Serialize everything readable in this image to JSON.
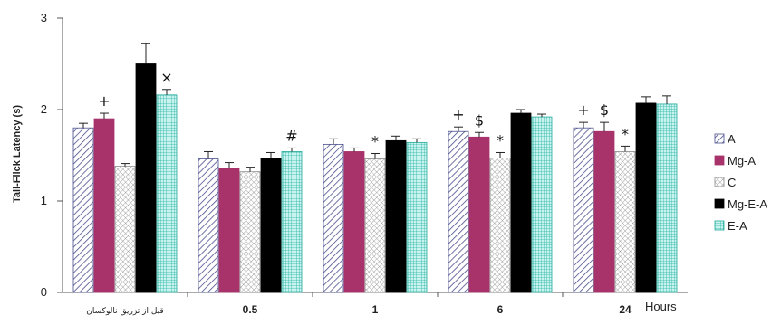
{
  "chart_data": {
    "type": "bar",
    "categories": [
      "قبل از تزریق نالوکسان",
      "0.5",
      "1",
      "6",
      "24"
    ],
    "xlabel": "Hours",
    "ylabel": "Tail-Flick Latency (s)",
    "ylim": [
      0,
      3
    ],
    "yticks": [
      "0",
      "1",
      "2",
      "3"
    ],
    "legend_position": "right",
    "series": [
      {
        "name": "A",
        "values": [
          1.8,
          1.46,
          1.62,
          1.76,
          1.8
        ],
        "errors": [
          0.05,
          0.08,
          0.06,
          0.05,
          0.06
        ],
        "color": "#4a4f8c",
        "pattern": "diag"
      },
      {
        "name": "Mg-A",
        "values": [
          1.9,
          1.36,
          1.54,
          1.7,
          1.76
        ],
        "errors": [
          0.06,
          0.06,
          0.04,
          0.05,
          0.1
        ],
        "color": "#a8336b",
        "pattern": "solid"
      },
      {
        "name": "C",
        "values": [
          1.38,
          1.32,
          1.46,
          1.47,
          1.54
        ],
        "errors": [
          0.03,
          0.05,
          0.06,
          0.06,
          0.06
        ],
        "color": "#888888",
        "pattern": "grid"
      },
      {
        "name": "Mg-E-A",
        "values": [
          2.5,
          1.47,
          1.66,
          1.96,
          2.07
        ],
        "errors": [
          0.22,
          0.06,
          0.05,
          0.04,
          0.07
        ],
        "color": "#000000",
        "pattern": "solid"
      },
      {
        "name": "E-A",
        "values": [
          2.16,
          1.54,
          1.64,
          1.92,
          2.06
        ],
        "errors": [
          0.06,
          0.04,
          0.04,
          0.03,
          0.09
        ],
        "color": "#33c2b3",
        "pattern": "grid"
      }
    ],
    "annotations": [
      {
        "text": "+",
        "category": 0,
        "series": 1
      },
      {
        "text": "×",
        "category": 0,
        "series": 4
      },
      {
        "text": "#",
        "category": 1,
        "series": 4
      },
      {
        "text": "*",
        "category": 2,
        "series": 2
      },
      {
        "text": "+",
        "category": 3,
        "series": 0
      },
      {
        "text": "$",
        "category": 3,
        "series": 1
      },
      {
        "text": "*",
        "category": 3,
        "series": 2
      },
      {
        "text": "+",
        "category": 4,
        "series": 0
      },
      {
        "text": "$",
        "category": 4,
        "series": 1
      },
      {
        "text": "*",
        "category": 4,
        "series": 2
      }
    ]
  }
}
